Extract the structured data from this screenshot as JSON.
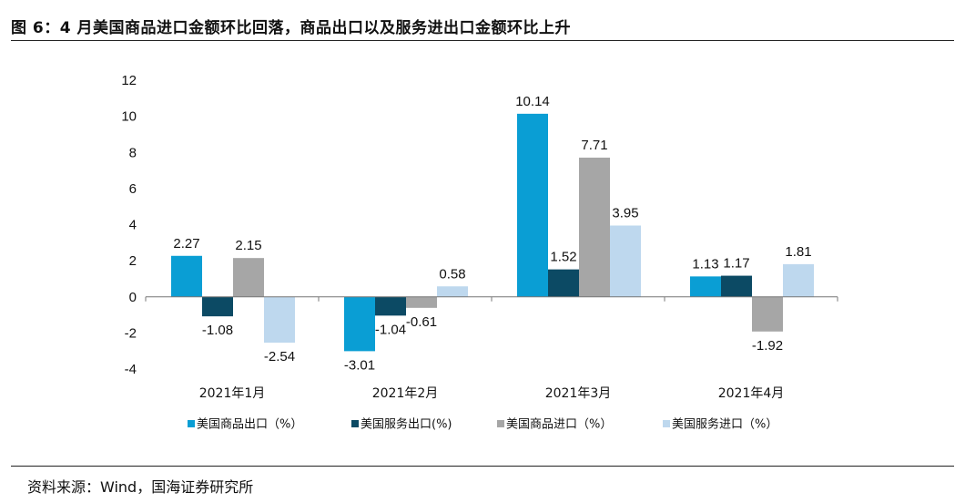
{
  "figure": {
    "title": "图 6：4 月美国商品进口金额环比回落，商品出口以及服务进出口金额环比上升",
    "source": "资料来源：Wind，国海证券研究所"
  },
  "chart_data": {
    "type": "bar",
    "categories": [
      "2021年1月",
      "2021年2月",
      "2021年3月",
      "2021年4月"
    ],
    "series": [
      {
        "name": "美国商品出口（%）",
        "color": "#0a9ed4",
        "values": [
          2.27,
          -3.01,
          10.14,
          1.13
        ]
      },
      {
        "name": "美国服务出口(%)",
        "color": "#0c4a64",
        "values": [
          -1.08,
          -1.04,
          1.52,
          1.17
        ]
      },
      {
        "name": "美国商品进口（%）",
        "color": "#a6a6a6",
        "values": [
          2.15,
          -0.61,
          7.71,
          -1.92
        ]
      },
      {
        "name": "美国服务进口（%）",
        "color": "#bed8ee",
        "values": [
          -2.54,
          0.58,
          3.95,
          1.81
        ]
      }
    ],
    "ylim": [
      -4,
      12
    ],
    "yticks": [
      -4,
      -2,
      0,
      2,
      4,
      6,
      8,
      10,
      12
    ],
    "grid": false,
    "legend": "bottom",
    "xlabel": "",
    "ylabel": ""
  }
}
